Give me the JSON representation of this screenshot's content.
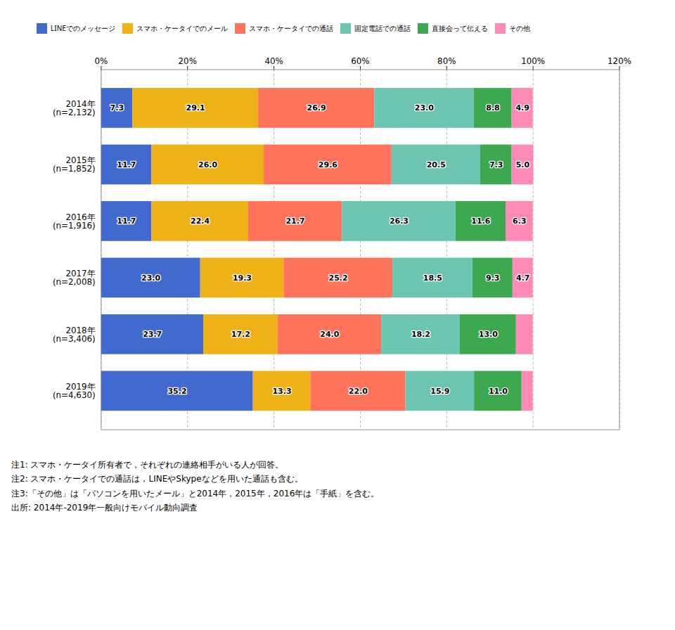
{
  "chart_data": {
    "type": "bar",
    "orientation": "horizontal",
    "stacked": true,
    "data_labels": true,
    "categories": [
      "2014年\n(n=2,132)",
      "2015年\n(n=1,852)",
      "2016年\n(n=1,916)",
      "2017年\n(n=2,008)",
      "2018年\n(n=3,406)",
      "2019年\n(n=4,630)"
    ],
    "series": [
      {
        "name": "LINEでのメッセージ",
        "values": [
          7.3,
          11.7,
          11.7,
          23.0,
          23.7,
          35.2
        ],
        "value_labels": [
          "7.3",
          "11.7",
          "11.7",
          "23.0",
          "23.7",
          "35.2"
        ]
      },
      {
        "name": "スマホ・ケータイでのメール",
        "values": [
          29.1,
          26.0,
          22.4,
          19.3,
          17.2,
          13.3
        ],
        "value_labels": [
          "29.1",
          "26.0",
          "22.4",
          "19.3",
          "17.2",
          "13.3"
        ]
      },
      {
        "name": "スマホ・ケータイでの通話",
        "values": [
          26.9,
          29.6,
          21.7,
          25.2,
          24.0,
          22.0
        ],
        "value_labels": [
          "26.9",
          "29.6",
          "21.7",
          "25.2",
          "24.0",
          "22.0"
        ]
      },
      {
        "name": "固定電話での通話",
        "values": [
          23.0,
          20.5,
          26.3,
          18.5,
          18.2,
          15.9
        ],
        "value_labels": [
          "23.0",
          "20.5",
          "26.3",
          "18.5",
          "18.2",
          "15.9"
        ]
      },
      {
        "name": "直接会って伝える",
        "values": [
          8.8,
          7.3,
          11.6,
          9.3,
          13.0,
          11.0
        ],
        "value_labels": [
          "8.8",
          "7.3",
          "11.6",
          "9.3",
          "13.0",
          "11.0"
        ]
      },
      {
        "name": "その他",
        "values": [
          4.9,
          5.0,
          6.3,
          4.7,
          3.9,
          2.6
        ],
        "value_labels": [
          "4.9",
          "5.0",
          "6.3",
          "4.7",
          null,
          null
        ]
      }
    ],
    "xlim": [
      0,
      120
    ],
    "xticks": [
      {
        "value": 0,
        "label": "0%"
      },
      {
        "value": 20,
        "label": "20%"
      },
      {
        "value": 40,
        "label": "40%"
      },
      {
        "value": 60,
        "label": "60%"
      },
      {
        "value": 80,
        "label": "80%"
      },
      {
        "value": 100,
        "label": "100%"
      },
      {
        "value": 120,
        "label": "120%"
      }
    ],
    "grid": true,
    "legend": "top",
    "notes": [
      "注1: スマホ・ケータイ所有者で，それぞれの連絡相手がいる人が回答。",
      "注2: スマホ・ケータイでの通話は，LINEやSkypeなどを用いた通話も含む。",
      "注3:「その他」は「パソコンを用いたメール」と2014年，2015年，2016年は「手紙」を含む。",
      "出所: 2014年-2019年一般向けモバイル動向調査"
    ]
  }
}
